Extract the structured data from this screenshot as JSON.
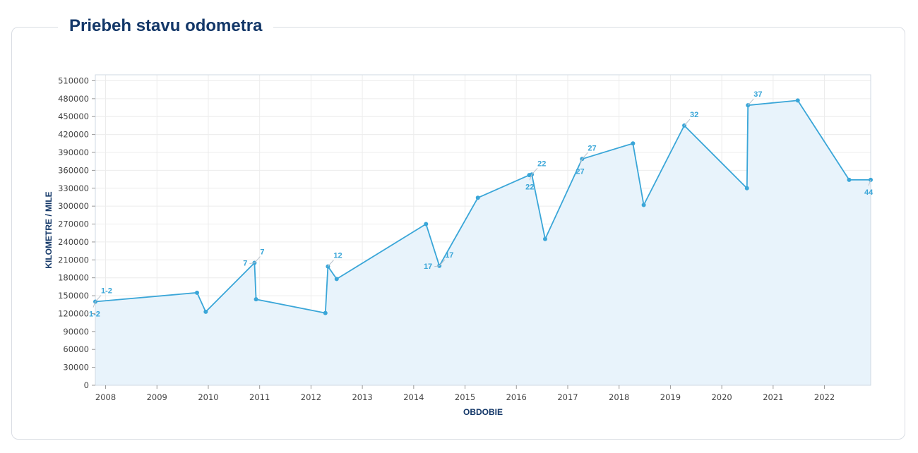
{
  "title": "Priebeh stavu odometra",
  "chart_data": {
    "type": "area",
    "xlabel": "OBDOBIE",
    "ylabel": "KILOMETRE / MILE",
    "xlim": [
      2007.8,
      2022.9
    ],
    "ylim": [
      0,
      520000
    ],
    "yticks": [
      0,
      30000,
      60000,
      90000,
      120000,
      150000,
      180000,
      210000,
      240000,
      270000,
      300000,
      330000,
      360000,
      390000,
      420000,
      450000,
      480000,
      510000
    ],
    "xticks": [
      2008,
      2009,
      2010,
      2011,
      2012,
      2013,
      2014,
      2015,
      2016,
      2017,
      2018,
      2019,
      2020,
      2021,
      2022
    ],
    "grid": true,
    "colors": {
      "line": "#3aa6d8",
      "fill": "#e8f3fb",
      "title": "#133768"
    },
    "points": [
      {
        "x": 2007.8,
        "y": 140000
      },
      {
        "x": 2009.78,
        "y": 155000
      },
      {
        "x": 2009.95,
        "y": 123000
      },
      {
        "x": 2010.9,
        "y": 205000
      },
      {
        "x": 2010.93,
        "y": 144000
      },
      {
        "x": 2012.28,
        "y": 121000
      },
      {
        "x": 2012.33,
        "y": 199000
      },
      {
        "x": 2012.5,
        "y": 178000
      },
      {
        "x": 2014.24,
        "y": 270000
      },
      {
        "x": 2014.5,
        "y": 200000
      },
      {
        "x": 2015.25,
        "y": 314000
      },
      {
        "x": 2016.25,
        "y": 352000
      },
      {
        "x": 2016.3,
        "y": 353000
      },
      {
        "x": 2016.56,
        "y": 245000
      },
      {
        "x": 2017.28,
        "y": 379000
      },
      {
        "x": 2018.27,
        "y": 405000
      },
      {
        "x": 2018.48,
        "y": 302000
      },
      {
        "x": 2019.27,
        "y": 435000
      },
      {
        "x": 2020.49,
        "y": 330000
      },
      {
        "x": 2020.51,
        "y": 469000
      },
      {
        "x": 2021.48,
        "y": 477000
      },
      {
        "x": 2022.48,
        "y": 344000
      },
      {
        "x": 2022.9,
        "y": 344000
      }
    ],
    "annotations": [
      {
        "text": "1-2",
        "x": 2007.8,
        "y": 140000,
        "pos": "above"
      },
      {
        "text": "1-2",
        "x": 2007.8,
        "y": 140000,
        "pos": "below"
      },
      {
        "text": "7",
        "x": 2010.9,
        "y": 205000,
        "pos": "above"
      },
      {
        "text": "7",
        "x": 2010.9,
        "y": 205000,
        "pos": "left"
      },
      {
        "text": "12",
        "x": 2012.33,
        "y": 199000,
        "pos": "above"
      },
      {
        "text": "17",
        "x": 2014.5,
        "y": 200000,
        "pos": "above"
      },
      {
        "text": "17",
        "x": 2014.5,
        "y": 200000,
        "pos": "left"
      },
      {
        "text": "22",
        "x": 2016.3,
        "y": 353000,
        "pos": "above"
      },
      {
        "text": "22",
        "x": 2016.3,
        "y": 353000,
        "pos": "below"
      },
      {
        "text": "27",
        "x": 2017.28,
        "y": 379000,
        "pos": "above"
      },
      {
        "text": "27",
        "x": 2017.28,
        "y": 379000,
        "pos": "below"
      },
      {
        "text": "32",
        "x": 2019.27,
        "y": 435000,
        "pos": "above"
      },
      {
        "text": "37",
        "x": 2020.51,
        "y": 469000,
        "pos": "above"
      },
      {
        "text": "44",
        "x": 2022.9,
        "y": 344000,
        "pos": "below"
      }
    ]
  }
}
